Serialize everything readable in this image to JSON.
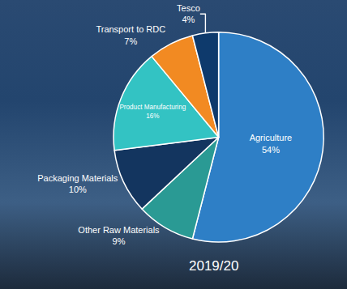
{
  "chart_data": {
    "type": "pie",
    "subtitle": "2019/20",
    "categories": [
      "Agriculture",
      "Other Raw Materials",
      "Packaging Materials",
      "Product Manufacturing",
      "Transport to RDC",
      "Tesco"
    ],
    "values": [
      54,
      9,
      10,
      16,
      7,
      4
    ],
    "value_labels": [
      "54%",
      "9%",
      "10%",
      "16%",
      "7%",
      "4%"
    ],
    "colors": [
      "#2e7fc6",
      "#2a9a94",
      "#13355f",
      "#33c3c3",
      "#f28a22",
      "#0e3a6c"
    ],
    "data_labels": true
  }
}
